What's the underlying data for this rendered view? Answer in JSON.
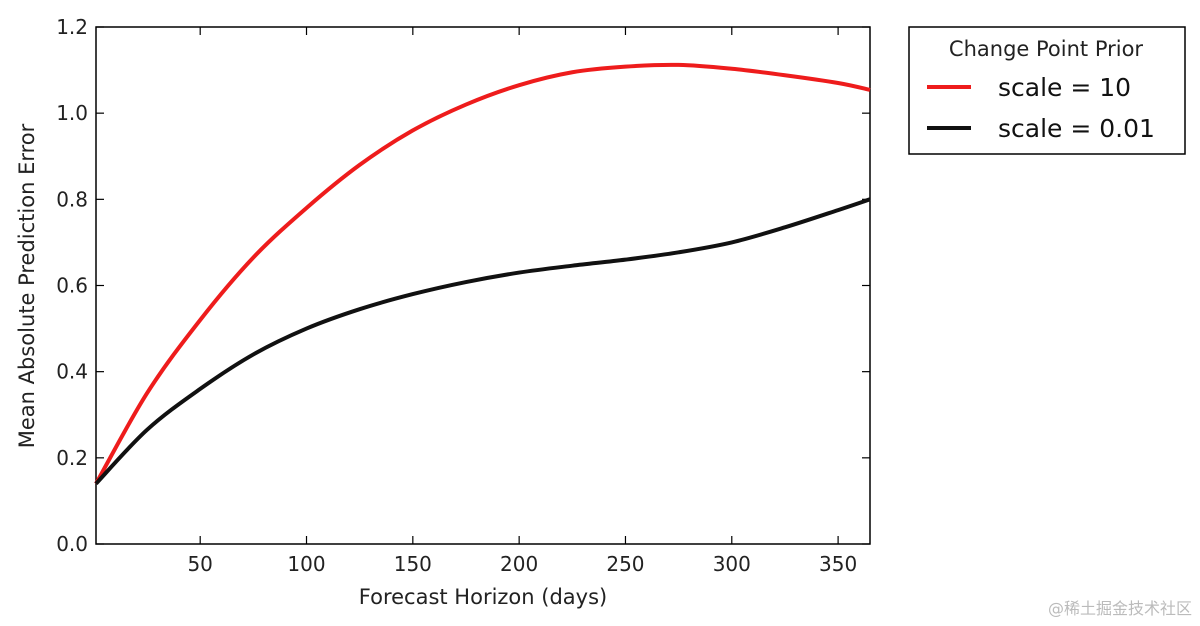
{
  "chart_data": {
    "type": "line",
    "xlabel": "Forecast Horizon (days)",
    "ylabel": "Mean Absolute Prediction Error",
    "xlim": [
      1,
      365
    ],
    "ylim": [
      0.0,
      1.2
    ],
    "xticks": [
      50,
      100,
      150,
      200,
      250,
      300,
      350
    ],
    "xtick_labels": [
      "50",
      "100",
      "150",
      "200",
      "250",
      "300",
      "350"
    ],
    "yticks": [
      0.0,
      0.2,
      0.4,
      0.6,
      0.8,
      1.0,
      1.2
    ],
    "ytick_labels": [
      "0.0",
      "0.2",
      "0.4",
      "0.6",
      "0.8",
      "1.0",
      "1.2"
    ],
    "grid": false,
    "legend": {
      "title": "Change Point Prior",
      "placement": "outside-upper-right"
    },
    "series": [
      {
        "name": "scale = 10",
        "color": "#ee1c1c",
        "x": [
          1,
          25,
          50,
          75,
          100,
          125,
          150,
          175,
          200,
          225,
          250,
          275,
          300,
          325,
          350,
          365
        ],
        "y": [
          0.14,
          0.35,
          0.52,
          0.665,
          0.78,
          0.88,
          0.96,
          1.02,
          1.065,
          1.095,
          1.108,
          1.112,
          1.103,
          1.088,
          1.07,
          1.054
        ]
      },
      {
        "name": "scale = 0.01",
        "color": "#111111",
        "x": [
          1,
          25,
          50,
          75,
          100,
          125,
          150,
          175,
          200,
          225,
          250,
          275,
          300,
          325,
          350,
          365
        ],
        "y": [
          0.14,
          0.265,
          0.36,
          0.44,
          0.5,
          0.545,
          0.58,
          0.608,
          0.63,
          0.646,
          0.66,
          0.677,
          0.7,
          0.735,
          0.775,
          0.8
        ]
      }
    ]
  },
  "watermark": "@稀土掘金技术社区"
}
